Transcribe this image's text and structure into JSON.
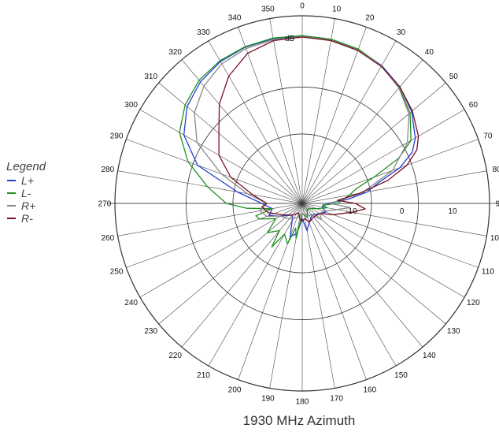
{
  "legend": {
    "title": "Legend",
    "items": [
      {
        "label": "L+",
        "color": "#1f3fd6"
      },
      {
        "label": "L-",
        "color": "#1f8f1f"
      },
      {
        "label": "R+",
        "color": "#8a8a8a"
      },
      {
        "label": "R-",
        "color": "#7a1020"
      }
    ]
  },
  "caption": "1930 MHz Azimuth",
  "chart_data": {
    "type": "polar",
    "unit_label": "dB",
    "angle_tick_step": 10,
    "ring_labels": [
      {
        "value": -10,
        "text": "-10"
      },
      {
        "value": 0,
        "text": "0"
      },
      {
        "value": 10,
        "text": "10"
      }
    ],
    "r_range": [
      -20,
      17
    ],
    "grid": true,
    "legend_position": "left",
    "series": [
      {
        "name": "L+",
        "color": "#1f3fd6",
        "points": [
          [
            0,
            13
          ],
          [
            10,
            12.8
          ],
          [
            20,
            12.3
          ],
          [
            30,
            11.4
          ],
          [
            40,
            10
          ],
          [
            50,
            8.2
          ],
          [
            60,
            5.8
          ],
          [
            65,
            4
          ],
          [
            70,
            0.5
          ],
          [
            75,
            -4.5
          ],
          [
            80,
            -7
          ],
          [
            85,
            -11
          ],
          [
            90,
            -15
          ],
          [
            100,
            -16
          ],
          [
            110,
            -15
          ],
          [
            120,
            -16
          ],
          [
            140,
            -17
          ],
          [
            160,
            -16
          ],
          [
            170,
            -14.5
          ],
          [
            180,
            -17
          ],
          [
            190,
            -14
          ],
          [
            200,
            -13
          ],
          [
            210,
            -16
          ],
          [
            220,
            -17
          ],
          [
            240,
            -15
          ],
          [
            250,
            -13
          ],
          [
            260,
            -14
          ],
          [
            270,
            -12
          ],
          [
            280,
            -7
          ],
          [
            290,
            2
          ],
          [
            300,
            7
          ],
          [
            310,
            9.7
          ],
          [
            320,
            11.3
          ],
          [
            330,
            12.3
          ],
          [
            340,
            12.8
          ],
          [
            350,
            13
          ],
          [
            360,
            13
          ]
        ]
      },
      {
        "name": "L-",
        "color": "#1f8f1f",
        "points": [
          [
            0,
            13.1
          ],
          [
            10,
            12.9
          ],
          [
            20,
            12.4
          ],
          [
            30,
            11.3
          ],
          [
            40,
            9.8
          ],
          [
            50,
            7.8
          ],
          [
            60,
            4.8
          ],
          [
            65,
            1
          ],
          [
            70,
            -5
          ],
          [
            75,
            -9
          ],
          [
            80,
            -10.5
          ],
          [
            85,
            -12
          ],
          [
            90,
            -13
          ],
          [
            95,
            -16
          ],
          [
            100,
            -15
          ],
          [
            110,
            -17
          ],
          [
            120,
            -18
          ],
          [
            140,
            -18.5
          ],
          [
            160,
            -17
          ],
          [
            180,
            -18
          ],
          [
            190,
            -13
          ],
          [
            195,
            -15
          ],
          [
            200,
            -11.5
          ],
          [
            210,
            -13
          ],
          [
            215,
            -9.5
          ],
          [
            220,
            -13
          ],
          [
            230,
            -11
          ],
          [
            240,
            -14
          ],
          [
            250,
            -11
          ],
          [
            255,
            -10.5
          ],
          [
            260,
            -14
          ],
          [
            265,
            -9
          ],
          [
            270,
            -5
          ],
          [
            280,
            -1
          ],
          [
            290,
            4
          ],
          [
            300,
            8
          ],
          [
            310,
            10.2
          ],
          [
            320,
            11.7
          ],
          [
            330,
            12.5
          ],
          [
            340,
            12.9
          ],
          [
            350,
            13.1
          ],
          [
            360,
            13.1
          ]
        ]
      },
      {
        "name": "R+",
        "color": "#8a8a8a",
        "points": [
          [
            0,
            12.9
          ],
          [
            10,
            12.7
          ],
          [
            20,
            12.2
          ],
          [
            30,
            11.3
          ],
          [
            40,
            9.7
          ],
          [
            50,
            7.5
          ],
          [
            60,
            4
          ],
          [
            70,
            -1
          ],
          [
            80,
            -8
          ],
          [
            90,
            -14.5
          ],
          [
            95,
            -10.5
          ],
          [
            100,
            -13
          ],
          [
            110,
            -15.5
          ],
          [
            120,
            -16
          ],
          [
            130,
            -15
          ],
          [
            140,
            -17
          ],
          [
            160,
            -17.5
          ],
          [
            180,
            -18
          ],
          [
            200,
            -17
          ],
          [
            220,
            -16
          ],
          [
            240,
            -15
          ],
          [
            250,
            -12.5
          ],
          [
            260,
            -11.5
          ],
          [
            270,
            -13
          ],
          [
            280,
            -9
          ],
          [
            290,
            -3
          ],
          [
            300,
            4
          ],
          [
            310,
            7.8
          ],
          [
            320,
            10.2
          ],
          [
            330,
            11.8
          ],
          [
            340,
            12.5
          ],
          [
            350,
            12.8
          ],
          [
            360,
            12.9
          ]
        ]
      },
      {
        "name": "R-",
        "color": "#7a1020",
        "points": [
          [
            0,
            12.8
          ],
          [
            10,
            12.6
          ],
          [
            20,
            12.1
          ],
          [
            30,
            11.2
          ],
          [
            40,
            10
          ],
          [
            50,
            8.4
          ],
          [
            60,
            6.5
          ],
          [
            65,
            5
          ],
          [
            70,
            2
          ],
          [
            75,
            -2.5
          ],
          [
            80,
            -8.5
          ],
          [
            85,
            -13
          ],
          [
            90,
            -9.5
          ],
          [
            95,
            -7.5
          ],
          [
            100,
            -10
          ],
          [
            110,
            -13.5
          ],
          [
            120,
            -16
          ],
          [
            140,
            -16.5
          ],
          [
            160,
            -16
          ],
          [
            170,
            -17
          ],
          [
            180,
            -16.5
          ],
          [
            190,
            -17
          ],
          [
            200,
            -18
          ],
          [
            220,
            -17
          ],
          [
            240,
            -15.5
          ],
          [
            255,
            -13
          ],
          [
            265,
            -12
          ],
          [
            270,
            -13
          ],
          [
            280,
            -10
          ],
          [
            290,
            -5
          ],
          [
            300,
            -1
          ],
          [
            310,
            1.5
          ],
          [
            320,
            5.5
          ],
          [
            330,
            9
          ],
          [
            340,
            11.5
          ],
          [
            350,
            12.6
          ],
          [
            360,
            12.8
          ]
        ]
      }
    ]
  }
}
